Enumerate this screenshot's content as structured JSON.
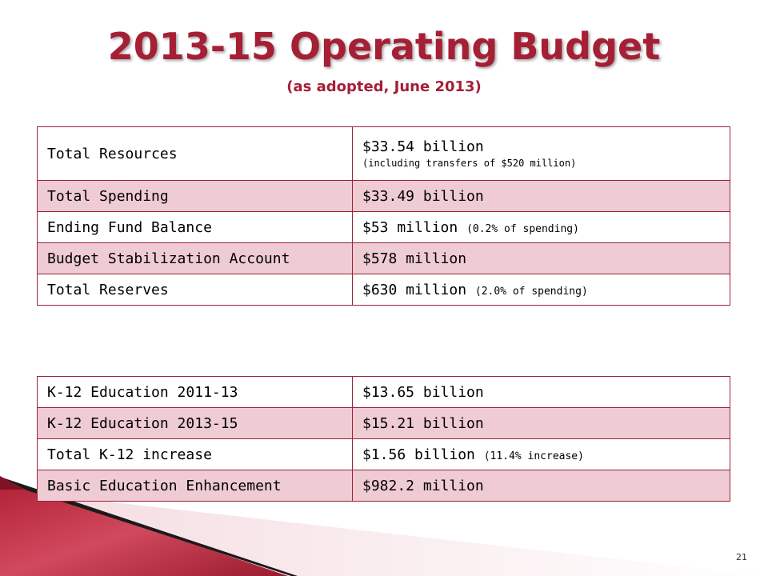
{
  "slide": {
    "title": "2013-15 Operating Budget",
    "subtitle": "(as adopted, June 2013)",
    "page_number": "21"
  },
  "budget_table": {
    "rows": [
      {
        "label": "Total Resources",
        "value": "$33.54 billion",
        "note": "(including transfers of $520 million)"
      },
      {
        "label": "Total Spending",
        "value": "$33.49 billion",
        "note": ""
      },
      {
        "label": "Ending Fund Balance",
        "value": "$53 million",
        "note": "(0.2% of spending)"
      },
      {
        "label": "Budget Stabilization Account",
        "value": "$578 million",
        "note": ""
      },
      {
        "label": "Total Reserves",
        "value": "$630 million",
        "note": "(2.0% of spending)"
      }
    ]
  },
  "k12_table": {
    "rows": [
      {
        "label": "K-12 Education 2011-13",
        "value": "$13.65 billion",
        "note": ""
      },
      {
        "label": "K-12 Education 2013-15",
        "value": "$15.21 billion",
        "note": ""
      },
      {
        "label": "Total K-12 increase",
        "value": "$1.56 billion",
        "note": "(11.4% increase)"
      },
      {
        "label": "Basic Education Enhancement",
        "value": "$982.2 million",
        "note": ""
      }
    ]
  },
  "colors": {
    "title": "#a51f35",
    "row_alt_fill": "#efcbd4",
    "border": "#9b2335"
  }
}
